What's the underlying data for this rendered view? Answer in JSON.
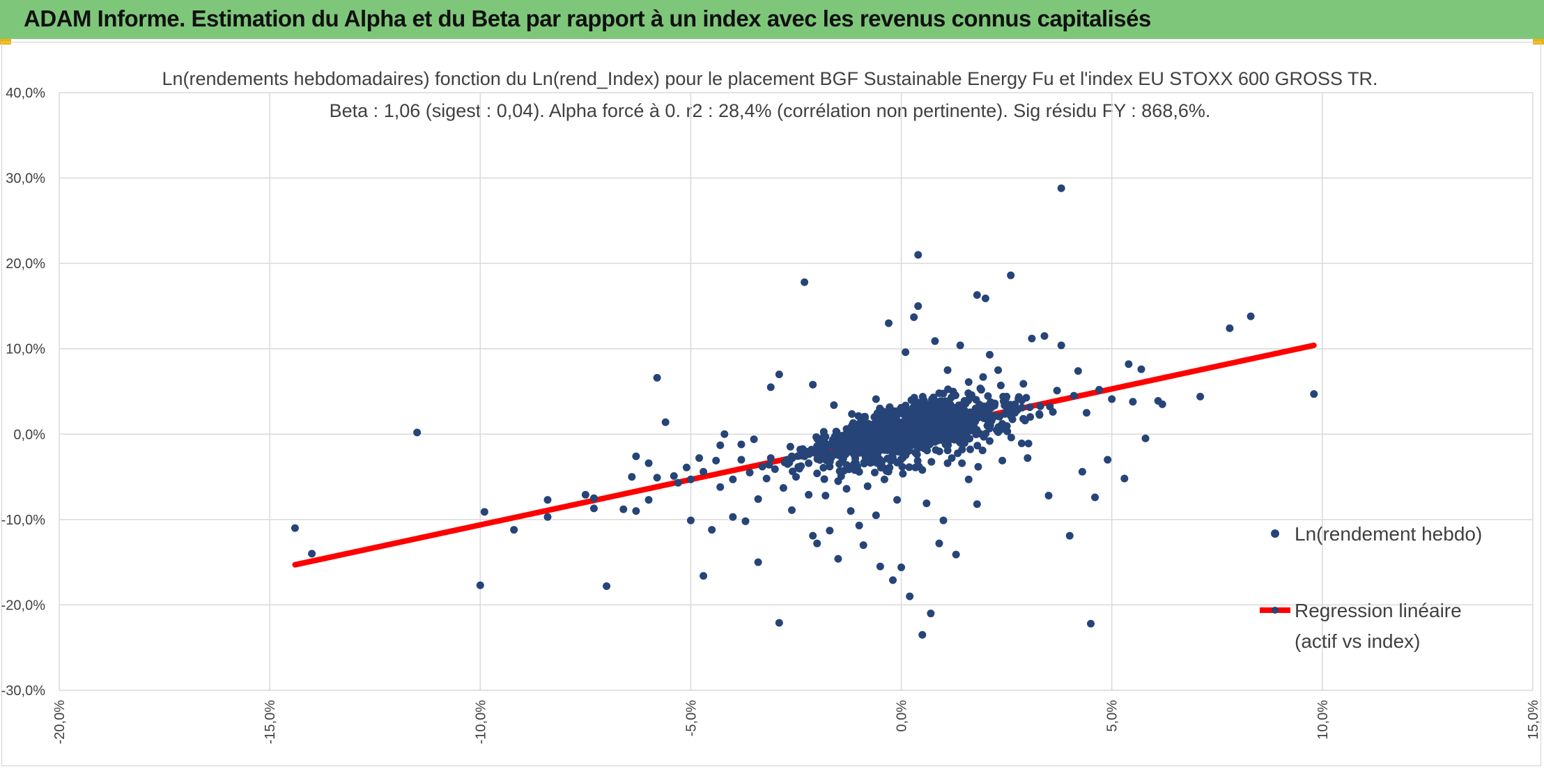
{
  "header": {
    "title": "ADAM Informe. Estimation du Alpha et du Beta par rapport à un index avec les revenus connus capitalisés",
    "background": "#7ec77a"
  },
  "chart_data": {
    "type": "scatter",
    "title": "Ln(rendements hebdomadaires) fonction du Ln(rend_Index) pour le placement BGF Sustainable Energy Fu et l'index EU STOXX 600 GROSS TR.",
    "subtitle": "Beta : 1,06 (sigest : 0,04). Alpha forcé à 0. r2 : 28,4% (corrélation non pertinente). Sig résidu FY : 868,6%.",
    "xlabel": "",
    "ylabel": "",
    "xlim": [
      -20,
      15
    ],
    "ylim": [
      -30,
      40
    ],
    "x_ticks": [
      -20,
      -15,
      -10,
      -5,
      0,
      5,
      10,
      15
    ],
    "x_tick_labels": [
      "-20,0%",
      "-15,0%",
      "-10,0%",
      "-5,0%",
      "0,0%",
      "5,0%",
      "10,0%",
      "15,0%"
    ],
    "y_ticks": [
      40,
      30,
      20,
      10,
      0,
      -10,
      -20,
      -30
    ],
    "y_tick_labels": [
      "40,0%",
      "30,0%",
      "20,0%",
      "10,0%",
      "0,0%",
      "-10,0%",
      "-20,0%",
      "-30,0%"
    ],
    "grid": true,
    "legend_position": "right",
    "series": [
      {
        "name": "Ln(rendement hebdo)",
        "type": "scatter",
        "color": "#264478",
        "points": [
          [
            -14.4,
            -11.0
          ],
          [
            -14.0,
            -14.0
          ],
          [
            -11.5,
            0.2
          ],
          [
            -10.0,
            -17.7
          ],
          [
            -9.9,
            -9.1
          ],
          [
            -9.2,
            -11.2
          ],
          [
            -8.4,
            -7.7
          ],
          [
            -8.4,
            -9.7
          ],
          [
            -7.5,
            -7.1
          ],
          [
            -7.3,
            -7.5
          ],
          [
            -7.3,
            -8.7
          ],
          [
            -7.0,
            -17.8
          ],
          [
            -6.6,
            -8.8
          ],
          [
            -6.4,
            -5.0
          ],
          [
            -6.3,
            -2.6
          ],
          [
            -6.3,
            -9.0
          ],
          [
            -6.0,
            -3.4
          ],
          [
            -6.0,
            -7.7
          ],
          [
            -5.8,
            6.6
          ],
          [
            -5.8,
            -5.1
          ],
          [
            -5.6,
            1.4
          ],
          [
            -5.4,
            -4.9
          ],
          [
            -5.3,
            -5.7
          ],
          [
            -5.1,
            -3.9
          ],
          [
            -5.0,
            -10.1
          ],
          [
            -5.0,
            -5.3
          ],
          [
            -4.8,
            -2.8
          ],
          [
            -4.7,
            -16.6
          ],
          [
            -4.7,
            -4.4
          ],
          [
            -4.5,
            -11.2
          ],
          [
            -4.4,
            -3.1
          ],
          [
            -4.3,
            -1.3
          ],
          [
            -4.3,
            -6.2
          ],
          [
            -4.2,
            0.0
          ],
          [
            -4.0,
            -9.7
          ],
          [
            -4.0,
            -5.3
          ],
          [
            -3.8,
            -3.0
          ],
          [
            -3.8,
            -1.2
          ],
          [
            -3.7,
            -10.2
          ],
          [
            -3.6,
            -4.5
          ],
          [
            -3.5,
            -0.6
          ],
          [
            -3.4,
            -15.0
          ],
          [
            -3.4,
            -7.6
          ],
          [
            -3.3,
            -3.8
          ],
          [
            -3.2,
            -5.2
          ],
          [
            -3.1,
            5.5
          ],
          [
            -3.1,
            -2.8
          ],
          [
            -3.0,
            -4.1
          ],
          [
            -2.9,
            7.0
          ],
          [
            -2.9,
            -22.1
          ],
          [
            -2.8,
            -6.3
          ],
          [
            -2.7,
            -3.5
          ],
          [
            -2.6,
            -2.6
          ],
          [
            -2.6,
            -8.9
          ],
          [
            -2.5,
            -5.0
          ],
          [
            -2.4,
            -1.8
          ],
          [
            -2.3,
            -2.6
          ],
          [
            -2.3,
            17.8
          ],
          [
            -2.2,
            -3.4
          ],
          [
            -2.2,
            -7.1
          ],
          [
            -2.1,
            5.8
          ],
          [
            -2.1,
            -11.9
          ],
          [
            -2.0,
            -1.4
          ],
          [
            -2.0,
            -4.6
          ],
          [
            -2.0,
            -12.8
          ],
          [
            -1.9,
            -2.1
          ],
          [
            -1.8,
            -0.3
          ],
          [
            -1.8,
            -7.2
          ],
          [
            -1.7,
            -3.8
          ],
          [
            -1.7,
            -11.3
          ],
          [
            -1.6,
            3.4
          ],
          [
            -1.6,
            -2.4
          ],
          [
            -1.5,
            -14.6
          ],
          [
            -1.5,
            -5.5
          ],
          [
            -1.4,
            -1.0
          ],
          [
            -1.4,
            -3.0
          ],
          [
            -1.3,
            0.6
          ],
          [
            -1.3,
            -6.4
          ],
          [
            -1.2,
            -1.8
          ],
          [
            -1.2,
            -9.0
          ],
          [
            -1.1,
            -0.5
          ],
          [
            -1.1,
            -4.1
          ],
          [
            -1.0,
            -10.7
          ],
          [
            -1.0,
            -2.2
          ],
          [
            -0.9,
            2.0
          ],
          [
            -0.9,
            -13.0
          ],
          [
            -0.8,
            -1.5
          ],
          [
            -0.8,
            -6.1
          ],
          [
            -0.7,
            -0.3
          ],
          [
            -0.7,
            -3.3
          ],
          [
            -0.6,
            4.1
          ],
          [
            -0.6,
            -9.5
          ],
          [
            -0.5,
            -1.0
          ],
          [
            -0.5,
            -15.5
          ],
          [
            -0.4,
            1.2
          ],
          [
            -0.4,
            -5.3
          ],
          [
            -0.3,
            13.0
          ],
          [
            -0.3,
            -0.6
          ],
          [
            -0.2,
            -17.1
          ],
          [
            -0.2,
            -2.8
          ],
          [
            -0.1,
            2.7
          ],
          [
            -0.1,
            -7.7
          ],
          [
            0.0,
            0.5
          ],
          [
            0.0,
            -15.6
          ],
          [
            0.1,
            -1.5
          ],
          [
            0.1,
            9.6
          ],
          [
            0.2,
            1.8
          ],
          [
            0.2,
            -19.0
          ],
          [
            0.3,
            -0.7
          ],
          [
            0.3,
            13.7
          ],
          [
            0.4,
            3.4
          ],
          [
            0.4,
            21.0
          ],
          [
            0.4,
            15.0
          ],
          [
            0.5,
            -4.2
          ],
          [
            0.5,
            -23.5
          ],
          [
            0.6,
            0.9
          ],
          [
            0.6,
            -8.1
          ],
          [
            0.7,
            2.6
          ],
          [
            0.7,
            -21.0
          ],
          [
            0.8,
            10.9
          ],
          [
            0.8,
            -0.9
          ],
          [
            0.9,
            4.8
          ],
          [
            0.9,
            -12.8
          ],
          [
            1.0,
            1.5
          ],
          [
            1.0,
            -10.1
          ],
          [
            1.1,
            7.5
          ],
          [
            1.1,
            -3.4
          ],
          [
            1.2,
            0.4
          ],
          [
            1.3,
            -14.1
          ],
          [
            1.3,
            2.9
          ],
          [
            1.4,
            10.4
          ],
          [
            1.4,
            -1.0
          ],
          [
            1.5,
            3.9
          ],
          [
            1.6,
            6.1
          ],
          [
            1.6,
            -5.3
          ],
          [
            1.7,
            1.4
          ],
          [
            1.8,
            16.3
          ],
          [
            1.8,
            -8.2
          ],
          [
            1.9,
            5.2
          ],
          [
            2.0,
            15.9
          ],
          [
            2.0,
            2.1
          ],
          [
            2.1,
            9.3
          ],
          [
            2.1,
            -0.8
          ],
          [
            2.2,
            3.6
          ],
          [
            2.3,
            7.5
          ],
          [
            2.4,
            1.2
          ],
          [
            2.4,
            -3.1
          ],
          [
            2.5,
            4.4
          ],
          [
            2.6,
            18.6
          ],
          [
            2.7,
            2.5
          ],
          [
            2.9,
            5.9
          ],
          [
            3.0,
            -2.8
          ],
          [
            3.1,
            11.2
          ],
          [
            3.3,
            3.3
          ],
          [
            3.4,
            11.5
          ],
          [
            3.5,
            -7.2
          ],
          [
            3.6,
            2.6
          ],
          [
            3.7,
            5.1
          ],
          [
            3.8,
            28.8
          ],
          [
            3.8,
            10.4
          ],
          [
            4.0,
            -11.9
          ],
          [
            4.1,
            4.5
          ],
          [
            4.2,
            7.4
          ],
          [
            4.3,
            -4.4
          ],
          [
            4.4,
            2.5
          ],
          [
            4.5,
            -22.2
          ],
          [
            4.6,
            -7.4
          ],
          [
            4.7,
            5.2
          ],
          [
            4.9,
            -3.0
          ],
          [
            5.0,
            4.1
          ],
          [
            5.3,
            -5.2
          ],
          [
            5.4,
            8.2
          ],
          [
            5.5,
            3.8
          ],
          [
            5.7,
            7.6
          ],
          [
            5.8,
            -0.5
          ],
          [
            6.1,
            3.9
          ],
          [
            6.2,
            3.5
          ],
          [
            7.1,
            4.4
          ],
          [
            7.8,
            12.4
          ],
          [
            8.3,
            13.8
          ],
          [
            9.8,
            4.7
          ]
        ]
      },
      {
        "name": "Regression linéaire",
        "name_line2": "(actif vs index)",
        "type": "line",
        "color": "#ff0000",
        "x": [
          -14.4,
          9.8
        ],
        "y": [
          -15.3,
          10.4
        ]
      }
    ]
  }
}
